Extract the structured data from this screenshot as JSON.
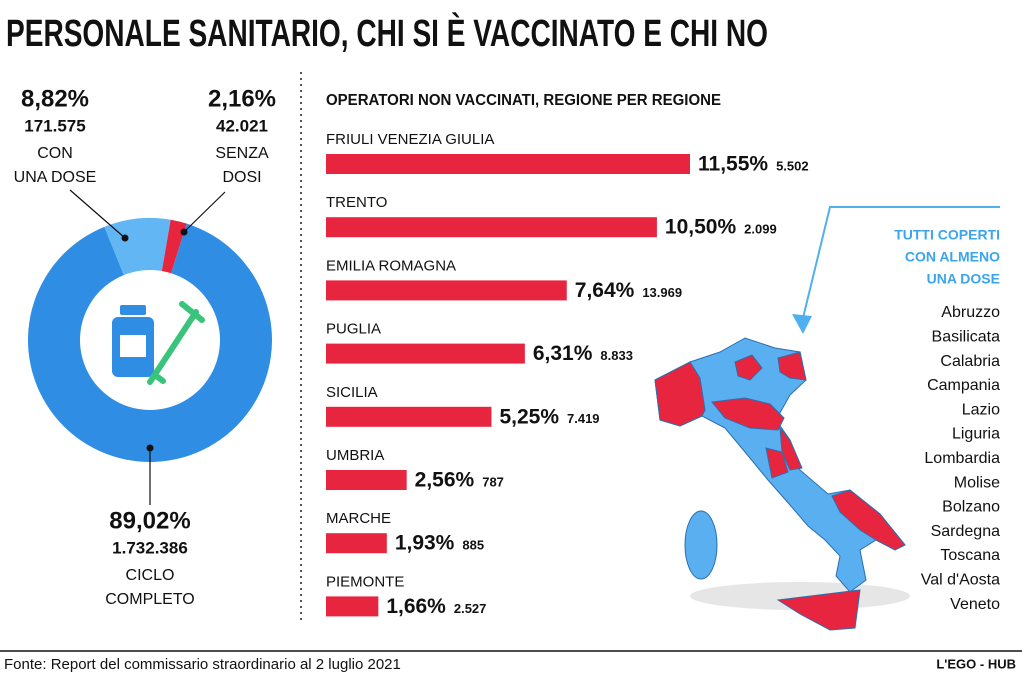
{
  "title": "PERSONALE SANITARIO, CHI SI È VACCINATO E CHI NO",
  "chart_data": [
    {
      "type": "pie",
      "categories": [
        [
          "CON",
          "UNA DOSE"
        ],
        [
          "SENZA",
          "DOSI"
        ],
        [
          "CICLO",
          "COMPLETO"
        ]
      ],
      "values": [
        8.82,
        2.16,
        89.02
      ],
      "value_labels": [
        "8,82%",
        "2,16%",
        "89,02%"
      ],
      "counts": [
        "171.575",
        "42.021",
        "1.732.386"
      ],
      "colors": [
        "#62b6f4",
        "#e8253f",
        "#2f8de4"
      ]
    },
    {
      "type": "bar",
      "title": "OPERATORI NON VACCINATI, REGIONE PER REGIONE",
      "categories": [
        "FRIULI VENEZIA GIULIA",
        "TRENTO",
        "EMILIA ROMAGNA",
        "PUGLIA",
        "SICILIA",
        "UMBRIA",
        "MARCHE",
        "PIEMONTE"
      ],
      "values": [
        11.55,
        10.5,
        7.64,
        6.31,
        5.25,
        2.56,
        1.93,
        1.66
      ],
      "value_labels": [
        "11,55%",
        "10,50%",
        "7,64%",
        "6,31%",
        "5,25%",
        "2,56%",
        "1,93%",
        "1,66%"
      ],
      "counts": [
        "5.502",
        "2.099",
        "13.969",
        "8.833",
        "7.419",
        "787",
        "885",
        "2.527"
      ],
      "color": "#e8253f"
    }
  ],
  "map_legend": {
    "title": [
      "TUTTI COPERTI",
      "CON ALMENO",
      "UNA DOSE"
    ],
    "regions": [
      "Abruzzo",
      "Basilicata",
      "Calabria",
      "Campania",
      "Lazio",
      "Liguria",
      "Lombardia",
      "Molise",
      "Bolzano",
      "Sardegna",
      "Toscana",
      "Val d'Aosta",
      "Veneto"
    ]
  },
  "source": "Fonte: Report del commissario straordinario al 2 luglio 2021",
  "credit": "L'EGO - HUB"
}
